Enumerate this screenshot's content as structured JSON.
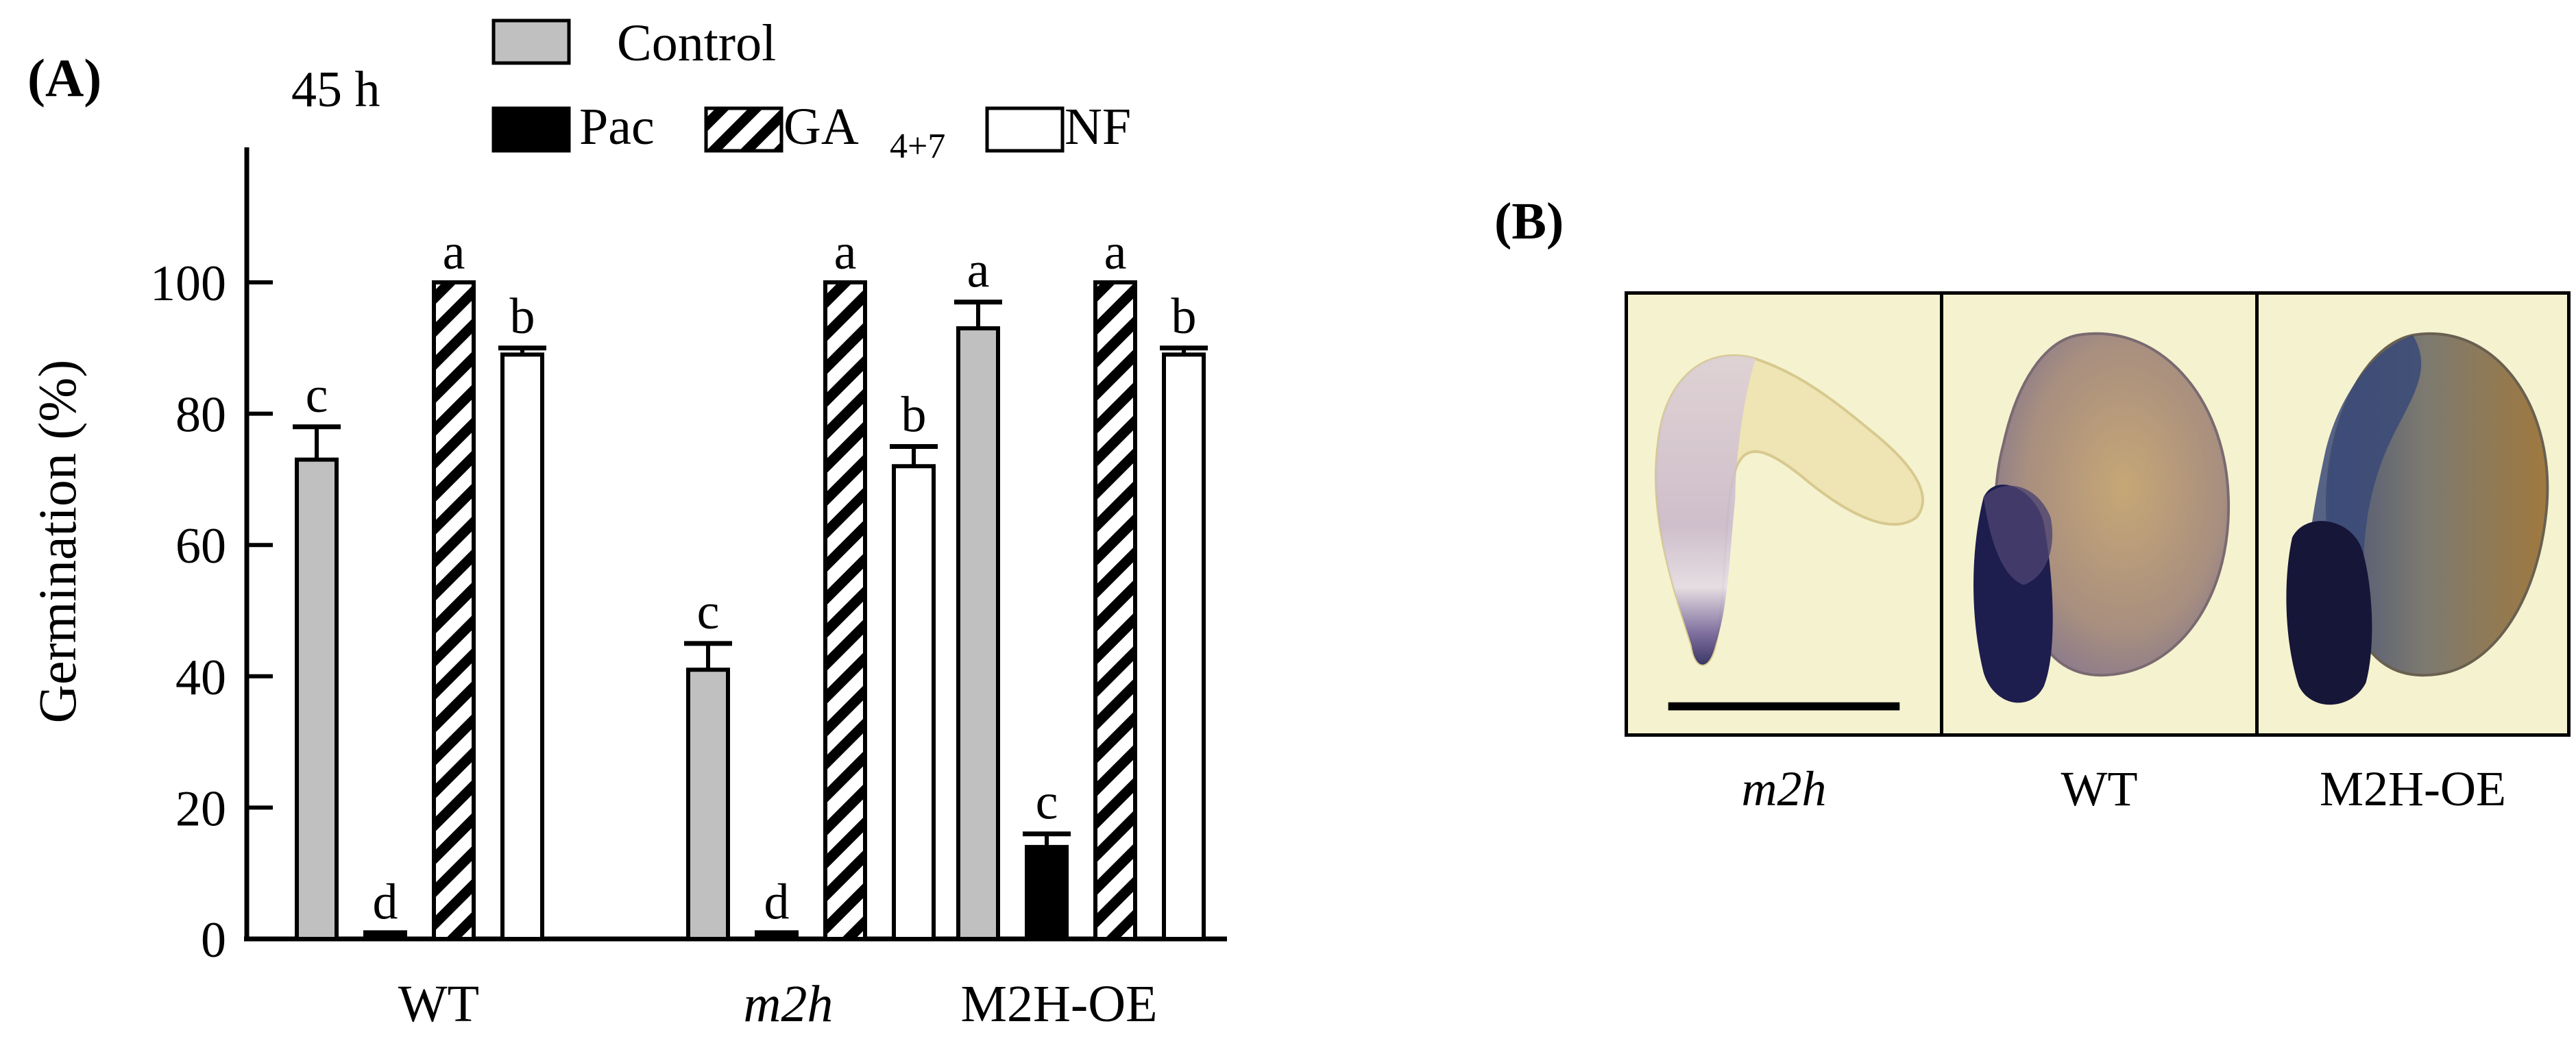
{
  "panel_a_label": "(A)",
  "panel_b_label": "(B)",
  "time_label": "45 h",
  "legend": {
    "control": "Control",
    "pac": "Pac",
    "ga_main": "GA",
    "ga_sub": "4+7",
    "nf": "NF"
  },
  "colors": {
    "control": "#c0c0c0",
    "pac": "#000000",
    "ga": "hatched",
    "nf": "#ffffff"
  },
  "chart_data": {
    "type": "bar",
    "title": "",
    "xlabel": "",
    "ylabel": "Germination (%)",
    "ylim": [
      0,
      120
    ],
    "yticks": [
      "0",
      "20",
      "40",
      "60",
      "80",
      "100"
    ],
    "categories": [
      "WT",
      "m2h",
      "M2H-OE"
    ],
    "series": [
      {
        "name": "Control",
        "values": [
          73,
          41,
          93
        ],
        "errors": [
          5,
          4,
          4
        ],
        "letters": [
          "c",
          "c",
          "a"
        ]
      },
      {
        "name": "Pac",
        "values": [
          1,
          1,
          14
        ],
        "errors": [
          0,
          0,
          2
        ],
        "letters": [
          "d",
          "d",
          "c"
        ]
      },
      {
        "name": "GA 4+7",
        "values": [
          100,
          100,
          100
        ],
        "errors": [
          0,
          0,
          0
        ],
        "letters": [
          "a",
          "a",
          "a"
        ]
      },
      {
        "name": "NF",
        "values": [
          89,
          72,
          89
        ],
        "errors": [
          1,
          3,
          1
        ],
        "letters": [
          "b",
          "b",
          "b"
        ]
      }
    ]
  },
  "panel_b": {
    "captions": [
      "m2h",
      "WT",
      "M2H-OE"
    ]
  }
}
